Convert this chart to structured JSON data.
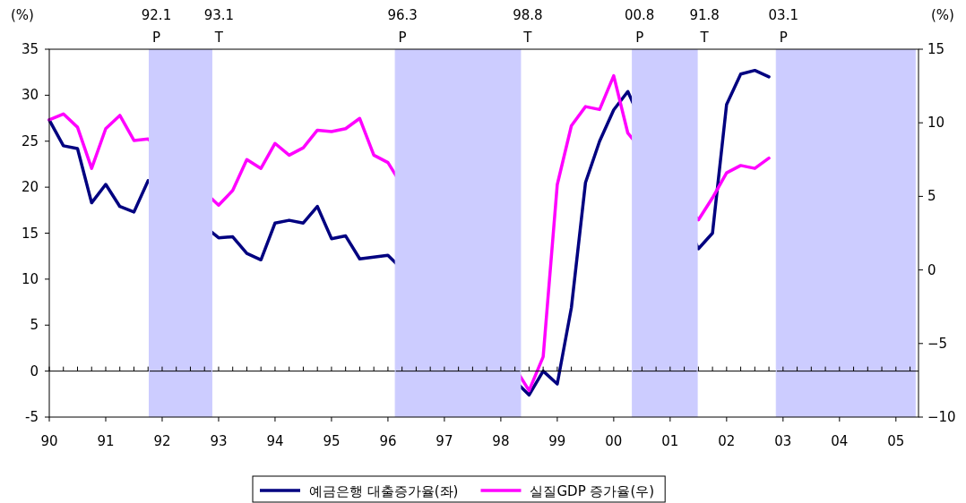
{
  "chart_data": {
    "type": "line",
    "ylabel": "(%)",
    "y2label": "(%)",
    "x": [
      1990,
      1990.25,
      1990.5,
      1990.75,
      1991,
      1991.25,
      1991.5,
      1991.75,
      1993,
      1993.25,
      1993.5,
      1993.75,
      1994,
      1994.25,
      1994.5,
      1994.75,
      1995,
      1995.25,
      1995.5,
      1995.75,
      1996,
      1998.5,
      1998.75,
      1999,
      1999.25,
      1999.5,
      1999.75,
      2000,
      2000.25,
      2001.5,
      2001.75,
      2002,
      2002.25,
      2002.5,
      2002.75
    ],
    "series": [
      {
        "name": "예금은행 대출증가율(좌)",
        "color": "#000080",
        "values": [
          27.3,
          24.5,
          24.2,
          18.3,
          20.3,
          17.9,
          17.3,
          20.7,
          14.5,
          14.6,
          12.8,
          12.1,
          16.1,
          16.4,
          16.1,
          17.9,
          14.4,
          14.7,
          12.2,
          12.4,
          12.6,
          -2.6,
          0,
          -1.4,
          6.9,
          20.5,
          25.0,
          28.4,
          30.4,
          13.3,
          15.0,
          29.0,
          32.3,
          32.7,
          32.0
        ]
      },
      {
        "name": "실질GDP 증가율(우)",
        "color": "#ff00ff",
        "axis": "y2",
        "values": [
          10.2,
          10.6,
          9.7,
          6.9,
          9.6,
          10.5,
          8.8,
          8.9,
          4.4,
          5.4,
          7.5,
          6.9,
          8.6,
          7.8,
          8.3,
          9.5,
          9.4,
          9.6,
          10.3,
          7.8,
          7.3,
          -8.2,
          -5.9,
          5.8,
          9.8,
          11.1,
          10.9,
          13.2,
          9.3,
          3.4,
          4.9,
          6.6,
          7.1,
          6.9,
          7.6
        ]
      }
    ],
    "xlim": [
      1990,
      2005.4
    ],
    "xticks": [
      {
        "value": 1990,
        "label": "90"
      },
      {
        "value": 1991,
        "label": "91"
      },
      {
        "value": 1992,
        "label": "92"
      },
      {
        "value": 1993,
        "label": "93"
      },
      {
        "value": 1994,
        "label": "94"
      },
      {
        "value": 1995,
        "label": "95"
      },
      {
        "value": 1996,
        "label": "96"
      },
      {
        "value": 1997,
        "label": "97"
      },
      {
        "value": 1998,
        "label": "98"
      },
      {
        "value": 1999,
        "label": "99"
      },
      {
        "value": 2000,
        "label": "00"
      },
      {
        "value": 2001,
        "label": "01"
      },
      {
        "value": 2002,
        "label": "02"
      },
      {
        "value": 2003,
        "label": "03"
      },
      {
        "value": 2004,
        "label": "04"
      },
      {
        "value": 2005,
        "label": "05"
      }
    ],
    "ylim": [
      -5,
      35
    ],
    "yticks": [
      -5,
      0,
      5,
      10,
      15,
      20,
      25,
      30,
      35
    ],
    "y2lim": [
      -10,
      15
    ],
    "y2ticks": [
      {
        "value": -10,
        "label": "−10"
      },
      {
        "value": -5,
        "label": "−5"
      },
      0,
      5,
      10,
      15
    ],
    "bands": [
      {
        "axis": "x",
        "from": 1991.77,
        "to": 1992.88,
        "color": "#ccccff"
      },
      {
        "axis": "x",
        "from": 1996.13,
        "to": 1998.35,
        "color": "#ccccff"
      },
      {
        "axis": "x",
        "from": 2000.33,
        "to": 2001.48,
        "color": "#ccccff"
      },
      {
        "axis": "x",
        "from": 2002.88,
        "to": 2005.35,
        "color": "#ccccff"
      }
    ],
    "ref_lines": [
      {
        "axis": "y",
        "value": 0,
        "color": "#000000"
      },
      {
        "axis": "x",
        "value": 1991.77,
        "label": "92.1 P",
        "color": "#ccccff"
      },
      {
        "axis": "x",
        "value": 1992.88,
        "label": "93.1 T",
        "color": "#ccccff"
      },
      {
        "axis": "x",
        "value": 1996.13,
        "label": "96.3 P",
        "color": "#ccccff"
      },
      {
        "axis": "x",
        "value": 1998.35,
        "label": "98.8 T",
        "color": "#ccccff"
      },
      {
        "axis": "x",
        "value": 2000.33,
        "label": "00.8 P",
        "color": "#ccccff"
      },
      {
        "axis": "x",
        "value": 2001.48,
        "label": "91.8 T",
        "color": "#ccccff"
      },
      {
        "axis": "x",
        "value": 2002.88,
        "label": "03.1 P",
        "color": "#ccccff"
      }
    ],
    "legend": "bottom",
    "grid": false,
    "marker": "none",
    "line_style": "solid"
  }
}
